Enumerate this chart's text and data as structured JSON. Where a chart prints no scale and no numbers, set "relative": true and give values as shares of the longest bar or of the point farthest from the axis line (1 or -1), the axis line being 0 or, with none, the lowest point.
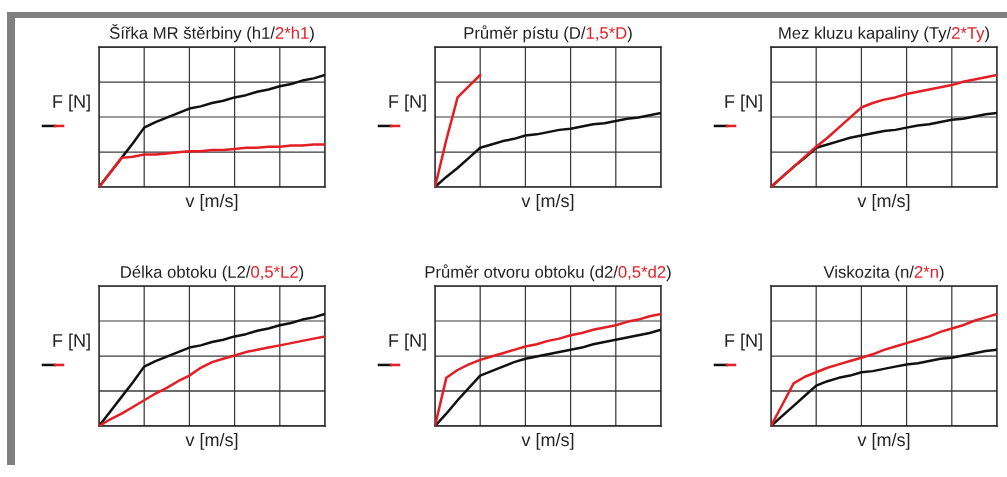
{
  "chart_data": [
    {
      "type": "line",
      "title": "Šířka MR štěrbiny (h1/2*h1)",
      "xlabel": "v [m/s]",
      "ylabel": "F [N]",
      "relative": true,
      "grid": true,
      "tick_labels": false,
      "categories": [
        null,
        null,
        null,
        null,
        null,
        null,
        null,
        null,
        null,
        null,
        null,
        null,
        null,
        null,
        null,
        null,
        null,
        null,
        null,
        null,
        null
      ],
      "series": [
        {
          "color": "#111111",
          "values": [
            0,
            0.13,
            0.26,
            0.39,
            0.53,
            0.58,
            0.62,
            0.66,
            0.7,
            0.72,
            0.75,
            0.77,
            0.8,
            0.82,
            0.85,
            0.87,
            0.9,
            0.92,
            0.95,
            0.97,
            1
          ]
        },
        {
          "color": "#e31e24",
          "values": [
            0,
            0.13,
            0.26,
            0.27,
            0.29,
            0.29,
            0.3,
            0.31,
            0.32,
            0.32,
            0.33,
            0.33,
            0.34,
            0.35,
            0.35,
            0.36,
            0.36,
            0.37,
            0.37,
            0.38,
            0.38
          ]
        }
      ]
    },
    {
      "type": "line",
      "title": "Průměr pístu (D/1,5*D)",
      "xlabel": "v [m/s]",
      "ylabel": "F [N]",
      "relative": true,
      "grid": true,
      "tick_labels": false,
      "categories": [
        null,
        null,
        null,
        null,
        null,
        null,
        null,
        null,
        null,
        null,
        null,
        null,
        null,
        null,
        null,
        null,
        null,
        null,
        null,
        null,
        null
      ],
      "series": [
        {
          "color": "#111111",
          "values": [
            0,
            0.09,
            0.17,
            0.26,
            0.35,
            0.38,
            0.41,
            0.43,
            0.46,
            0.47,
            0.49,
            0.51,
            0.52,
            0.54,
            0.56,
            0.57,
            0.59,
            0.61,
            0.62,
            0.64,
            0.66
          ]
        },
        {
          "color": "#e31e24",
          "values": [
            0,
            0.42,
            0.8,
            0.9,
            1,
            null,
            null,
            null,
            null,
            null,
            null,
            null,
            null,
            null,
            null,
            null,
            null,
            null,
            null,
            null,
            null
          ]
        }
      ]
    },
    {
      "type": "line",
      "title": "Mez kluzu kapaliny (Ty/2*Ty)",
      "xlabel": "v [m/s]",
      "ylabel": "F [N]",
      "relative": true,
      "grid": true,
      "tick_labels": false,
      "categories": [
        null,
        null,
        null,
        null,
        null,
        null,
        null,
        null,
        null,
        null,
        null,
        null,
        null,
        null,
        null,
        null,
        null,
        null,
        null,
        null,
        null
      ],
      "series": [
        {
          "color": "#111111",
          "values": [
            0,
            0.09,
            0.18,
            0.26,
            0.35,
            0.38,
            0.41,
            0.44,
            0.46,
            0.48,
            0.5,
            0.51,
            0.53,
            0.55,
            0.56,
            0.58,
            0.6,
            0.61,
            0.63,
            0.65,
            0.66
          ]
        },
        {
          "color": "#e31e24",
          "values": [
            0,
            0.09,
            0.18,
            0.27,
            0.36,
            0.44,
            0.53,
            0.62,
            0.71,
            0.75,
            0.78,
            0.8,
            0.83,
            0.85,
            0.87,
            0.89,
            0.91,
            0.94,
            0.96,
            0.98,
            1
          ]
        }
      ]
    },
    {
      "type": "line",
      "title": "Délka obtoku (L2/0,5*L2)",
      "xlabel": "v [m/s]",
      "ylabel": "F [N]",
      "relative": true,
      "grid": true,
      "tick_labels": false,
      "categories": [
        null,
        null,
        null,
        null,
        null,
        null,
        null,
        null,
        null,
        null,
        null,
        null,
        null,
        null,
        null,
        null,
        null,
        null,
        null,
        null,
        null
      ],
      "series": [
        {
          "color": "#111111",
          "values": [
            0,
            0.13,
            0.26,
            0.39,
            0.53,
            0.58,
            0.62,
            0.66,
            0.7,
            0.72,
            0.75,
            0.77,
            0.8,
            0.82,
            0.85,
            0.87,
            0.9,
            0.92,
            0.95,
            0.97,
            1
          ]
        },
        {
          "color": "#e31e24",
          "values": [
            0,
            0.06,
            0.11,
            0.17,
            0.23,
            0.29,
            0.34,
            0.4,
            0.45,
            0.52,
            0.57,
            0.6,
            0.63,
            0.66,
            0.68,
            0.7,
            0.72,
            0.74,
            0.76,
            0.78,
            0.8
          ]
        }
      ]
    },
    {
      "type": "line",
      "title": "Průměr otvoru obtoku (d2/0,5*d2)",
      "xlabel": "v [m/s]",
      "ylabel": "F [N]",
      "relative": true,
      "grid": true,
      "tick_labels": false,
      "categories": [
        null,
        null,
        null,
        null,
        null,
        null,
        null,
        null,
        null,
        null,
        null,
        null,
        null,
        null,
        null,
        null,
        null,
        null,
        null,
        null,
        null
      ],
      "series": [
        {
          "color": "#111111",
          "values": [
            0,
            0.11,
            0.23,
            0.34,
            0.45,
            0.49,
            0.53,
            0.57,
            0.6,
            0.62,
            0.64,
            0.66,
            0.68,
            0.7,
            0.73,
            0.75,
            0.77,
            0.79,
            0.81,
            0.83,
            0.86
          ]
        },
        {
          "color": "#e31e24",
          "values": [
            0,
            0.43,
            0.5,
            0.55,
            0.59,
            0.62,
            0.65,
            0.68,
            0.71,
            0.73,
            0.76,
            0.78,
            0.81,
            0.83,
            0.86,
            0.88,
            0.9,
            0.93,
            0.95,
            0.98,
            1
          ]
        }
      ]
    },
    {
      "type": "line",
      "title": "Viskozita (n/2*n)",
      "xlabel": "v [m/s]",
      "ylabel": "F [N]",
      "relative": true,
      "grid": true,
      "tick_labels": false,
      "categories": [
        null,
        null,
        null,
        null,
        null,
        null,
        null,
        null,
        null,
        null,
        null,
        null,
        null,
        null,
        null,
        null,
        null,
        null,
        null,
        null,
        null
      ],
      "series": [
        {
          "color": "#111111",
          "values": [
            0,
            0.09,
            0.18,
            0.27,
            0.36,
            0.4,
            0.43,
            0.45,
            0.48,
            0.49,
            0.51,
            0.53,
            0.55,
            0.56,
            0.58,
            0.6,
            0.61,
            0.63,
            0.65,
            0.67,
            0.68
          ]
        },
        {
          "color": "#e31e24",
          "values": [
            0,
            0.19,
            0.38,
            0.44,
            0.48,
            0.52,
            0.55,
            0.58,
            0.61,
            0.64,
            0.68,
            0.71,
            0.74,
            0.77,
            0.8,
            0.84,
            0.87,
            0.9,
            0.94,
            0.97,
            1
          ]
        }
      ]
    }
  ]
}
